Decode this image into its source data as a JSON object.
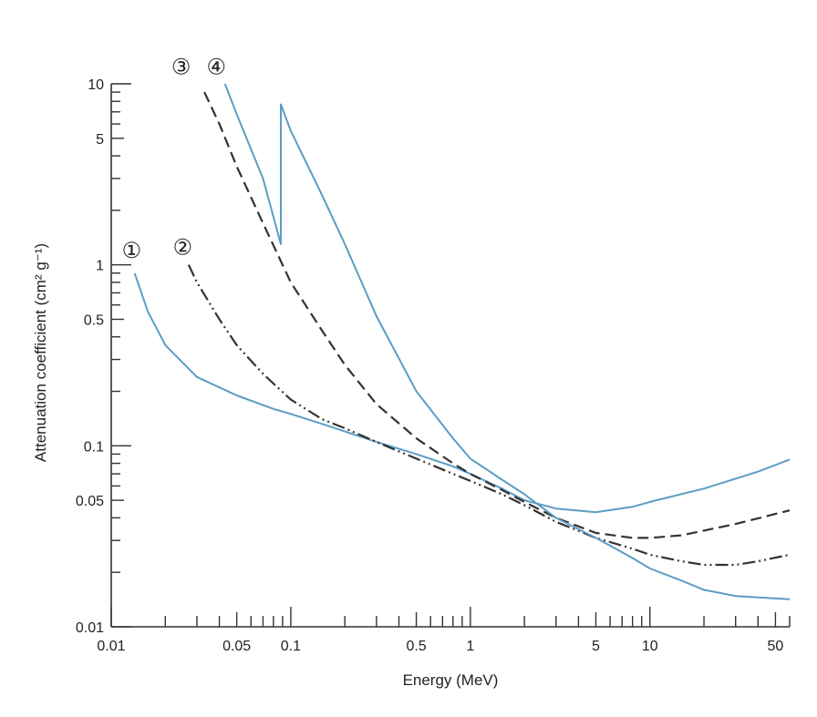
{
  "chart_data": {
    "type": "line",
    "title": "",
    "xlabel": "Energy (MeV)",
    "ylabel": "Attenuation coefficient (cm² g⁻¹)",
    "x_scale": "log",
    "y_scale": "log",
    "xlim": [
      0.01,
      60
    ],
    "ylim": [
      0.01,
      10
    ],
    "grid": false,
    "x_tick_labels": [
      {
        "value": 0.01,
        "label": "0.01"
      },
      {
        "value": 0.05,
        "label": "0.05"
      },
      {
        "value": 0.1,
        "label": "0.1"
      },
      {
        "value": 0.5,
        "label": "0.5"
      },
      {
        "value": 1,
        "label": "1"
      },
      {
        "value": 5,
        "label": "5"
      },
      {
        "value": 10,
        "label": "10"
      },
      {
        "value": 50,
        "label": "50"
      }
    ],
    "y_tick_labels": [
      {
        "value": 0.01,
        "label": "0.01"
      },
      {
        "value": 0.05,
        "label": "0.05"
      },
      {
        "value": 0.1,
        "label": "0.1"
      },
      {
        "value": 0.5,
        "label": "0.5"
      },
      {
        "value": 1,
        "label": "1"
      },
      {
        "value": 5,
        "label": "5"
      },
      {
        "value": 10,
        "label": "10"
      }
    ],
    "series": [
      {
        "label": "①",
        "color": "#5b9dc4",
        "style": "solid",
        "points": [
          [
            0.0135,
            0.9
          ],
          [
            0.016,
            0.55
          ],
          [
            0.02,
            0.36
          ],
          [
            0.03,
            0.24
          ],
          [
            0.05,
            0.19
          ],
          [
            0.08,
            0.16
          ],
          [
            0.1,
            0.15
          ],
          [
            0.15,
            0.132
          ],
          [
            0.2,
            0.12
          ],
          [
            0.3,
            0.105
          ],
          [
            0.5,
            0.09
          ],
          [
            0.8,
            0.077
          ],
          [
            1,
            0.07
          ],
          [
            1.5,
            0.058
          ],
          [
            2,
            0.05
          ],
          [
            3,
            0.045
          ],
          [
            5,
            0.043
          ],
          [
            8,
            0.046
          ],
          [
            10,
            0.049
          ],
          [
            20,
            0.058
          ],
          [
            40,
            0.072
          ],
          [
            60,
            0.084
          ]
        ]
      },
      {
        "label": "②",
        "color": "#333333",
        "style": "dash-dot-dot",
        "points": [
          [
            0.027,
            1.0
          ],
          [
            0.03,
            0.8
          ],
          [
            0.04,
            0.5
          ],
          [
            0.05,
            0.36
          ],
          [
            0.07,
            0.25
          ],
          [
            0.1,
            0.18
          ],
          [
            0.15,
            0.14
          ],
          [
            0.2,
            0.125
          ],
          [
            0.3,
            0.105
          ],
          [
            0.5,
            0.085
          ],
          [
            0.8,
            0.07
          ],
          [
            1,
            0.064
          ],
          [
            1.5,
            0.054
          ],
          [
            2,
            0.047
          ],
          [
            3,
            0.038
          ],
          [
            5,
            0.031
          ],
          [
            8,
            0.027
          ],
          [
            10,
            0.025
          ],
          [
            15,
            0.023
          ],
          [
            20,
            0.022
          ],
          [
            30,
            0.022
          ],
          [
            40,
            0.023
          ],
          [
            60,
            0.025
          ]
        ]
      },
      {
        "label": "③",
        "color": "#333333",
        "style": "dashed",
        "points": [
          [
            0.033,
            9.0
          ],
          [
            0.04,
            6.0
          ],
          [
            0.05,
            3.5
          ],
          [
            0.07,
            1.7
          ],
          [
            0.1,
            0.8
          ],
          [
            0.15,
            0.43
          ],
          [
            0.2,
            0.28
          ],
          [
            0.3,
            0.17
          ],
          [
            0.5,
            0.11
          ],
          [
            0.8,
            0.08
          ],
          [
            1,
            0.07
          ],
          [
            1.5,
            0.057
          ],
          [
            2,
            0.049
          ],
          [
            3,
            0.04
          ],
          [
            5,
            0.033
          ],
          [
            8,
            0.031
          ],
          [
            10,
            0.031
          ],
          [
            15,
            0.032
          ],
          [
            20,
            0.034
          ],
          [
            30,
            0.037
          ],
          [
            60,
            0.044
          ]
        ]
      },
      {
        "label": "④",
        "color": "#5b9dc4",
        "style": "solid",
        "points": [
          [
            0.043,
            10
          ],
          [
            0.05,
            6.8
          ],
          [
            0.07,
            3.0
          ],
          [
            0.088,
            1.3
          ],
          [
            0.088,
            7.7
          ],
          [
            0.1,
            5.5
          ],
          [
            0.15,
            2.4
          ],
          [
            0.2,
            1.3
          ],
          [
            0.3,
            0.52
          ],
          [
            0.5,
            0.2
          ],
          [
            0.8,
            0.11
          ],
          [
            1,
            0.085
          ],
          [
            1.5,
            0.065
          ],
          [
            2,
            0.054
          ],
          [
            3,
            0.04
          ],
          [
            5,
            0.031
          ],
          [
            8,
            0.024
          ],
          [
            10,
            0.021
          ],
          [
            15,
            0.018
          ],
          [
            20,
            0.016
          ],
          [
            30,
            0.0148
          ],
          [
            60,
            0.0142
          ]
        ]
      }
    ],
    "annotations": [
      {
        "text": "①",
        "x": 0.013,
        "y": 1.2
      },
      {
        "text": "②",
        "x": 0.025,
        "y": 1.25
      },
      {
        "text": "③",
        "x": 0.0245,
        "y": 12.4
      },
      {
        "text": "④",
        "x": 0.0385,
        "y": 12.4
      }
    ]
  }
}
